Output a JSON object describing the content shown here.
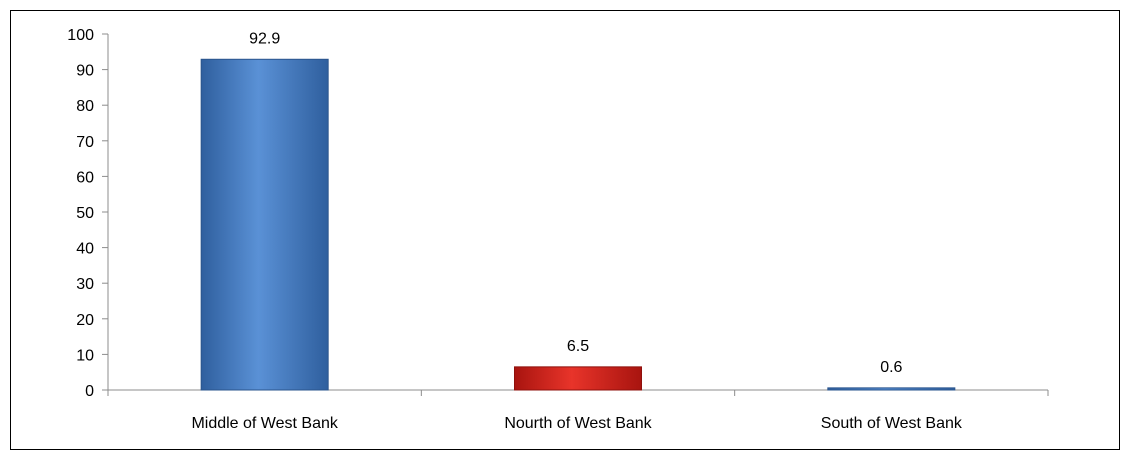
{
  "chart_data": {
    "type": "bar",
    "categories": [
      "Middle of West Bank",
      "Nourth of West Bank",
      "South of West Bank"
    ],
    "values": [
      92.9,
      6.5,
      0.6
    ],
    "data_labels": [
      "92.9",
      "6.5",
      "0.6"
    ],
    "ylim": [
      0,
      100
    ],
    "yticks": [
      0,
      10,
      20,
      30,
      40,
      50,
      60,
      70,
      80,
      90,
      100
    ],
    "title": "",
    "xlabel": "",
    "ylabel": "",
    "bar_colors": [
      "#4a7fc1",
      "#d42a22",
      "#4a7fc1"
    ],
    "grid": false,
    "legend": "none"
  }
}
